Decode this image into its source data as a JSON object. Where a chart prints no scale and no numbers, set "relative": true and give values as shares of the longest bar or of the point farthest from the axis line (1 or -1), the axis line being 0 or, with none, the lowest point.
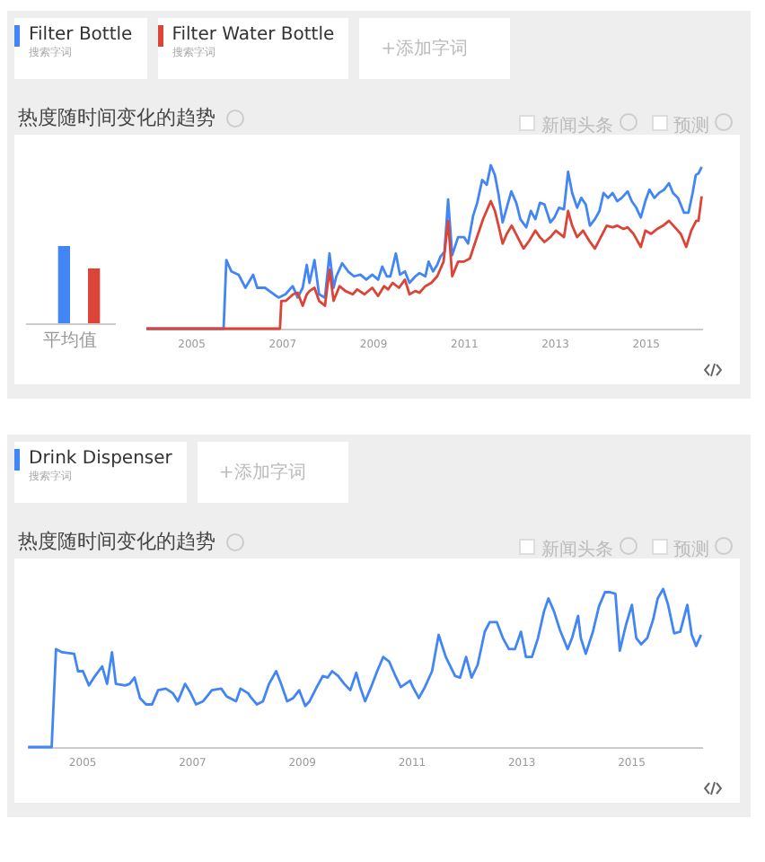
{
  "chart_data": [
    {
      "type": "bar",
      "relative": true,
      "categories": [
        "平均值"
      ],
      "series": [
        {
          "color": "#4285f4",
          "values": [
            1
          ]
        },
        {
          "color": "#db4437",
          "values": [
            0.71
          ]
        }
      ]
    },
    {
      "type": "line",
      "title": "热度随时间变化的趋势",
      "relative": true,
      "legend": "top left",
      "xlim": [
        2004,
        2016.25
      ],
      "xticks": [
        2005,
        2007,
        2009,
        2011,
        2013,
        2015
      ],
      "annotations": [
        "搜索字词",
        "搜索字词",
        "+添加字词",
        "新闻头条",
        "预测"
      ],
      "series": [
        {
          "name": "Filter Bottle",
          "color": "#4285f4",
          "x": [
            2004.02,
            2005.72,
            2005.78,
            2005.89,
            2006.05,
            2006.2,
            2006.37,
            2006.46,
            2006.63,
            2006.83,
            2006.93,
            2007.08,
            2007.24,
            2007.35,
            2007.46,
            2007.55,
            2007.61,
            2007.72,
            2007.82,
            2007.95,
            2008.05,
            2008.14,
            2008.2,
            2008.33,
            2008.46,
            2008.59,
            2008.73,
            2008.86,
            2008.99,
            2009.12,
            2009.21,
            2009.31,
            2009.39,
            2009.51,
            2009.6,
            2009.71,
            2009.81,
            2009.94,
            2010.03,
            2010.16,
            2010.23,
            2010.33,
            2010.42,
            2010.49,
            2010.58,
            2010.66,
            2010.75,
            2010.88,
            2011.01,
            2011.1,
            2011.21,
            2011.3,
            2011.41,
            2011.51,
            2011.6,
            2011.69,
            2011.77,
            2011.86,
            2011.95,
            2012.05,
            2012.16,
            2012.25,
            2012.38,
            2012.48,
            2012.58,
            2012.68,
            2012.78,
            2012.91,
            2013.0,
            2013.1,
            2013.21,
            2013.3,
            2013.39,
            2013.5,
            2013.59,
            2013.69,
            2013.78,
            2013.89,
            2013.99,
            2014.08,
            2014.18,
            2014.28,
            2014.38,
            2014.48,
            2014.61,
            2014.7,
            2014.8,
            2014.9,
            2015.0,
            2015.09,
            2015.2,
            2015.3,
            2015.41,
            2015.52,
            2015.61,
            2015.72,
            2015.85,
            2015.95,
            2016.04,
            2016.11,
            2016.17,
            2016.24
          ],
          "values": [
            0,
            0,
            0.42,
            0.35,
            0.33,
            0.25,
            0.33,
            0.25,
            0.25,
            0.21,
            0.19,
            0.21,
            0.26,
            0.19,
            0.25,
            0.39,
            0.28,
            0.42,
            0.21,
            0.19,
            0.46,
            0.25,
            0.32,
            0.4,
            0.35,
            0.32,
            0.33,
            0.3,
            0.33,
            0.3,
            0.38,
            0.32,
            0.32,
            0.46,
            0.33,
            0.35,
            0.28,
            0.32,
            0.34,
            0.32,
            0.41,
            0.35,
            0.39,
            0.44,
            0.47,
            0.79,
            0.45,
            0.56,
            0.56,
            0.52,
            0.69,
            0.77,
            0.91,
            0.88,
            1.0,
            0.94,
            0.82,
            0.65,
            0.74,
            0.84,
            0.77,
            0.67,
            0.62,
            0.72,
            0.67,
            0.77,
            0.76,
            0.65,
            0.68,
            0.74,
            0.73,
            0.96,
            0.83,
            0.74,
            0.8,
            0.76,
            0.63,
            0.67,
            0.72,
            0.83,
            0.8,
            0.83,
            0.78,
            0.8,
            0.84,
            0.78,
            0.74,
            0.68,
            0.78,
            0.85,
            0.8,
            0.83,
            0.85,
            0.89,
            0.83,
            0.8,
            0.71,
            0.71,
            0.83,
            0.94,
            0.95,
            0.99
          ]
        },
        {
          "name": "Filter Water Bottle",
          "color": "#db4437",
          "x": [
            2004.02,
            2006.96,
            2006.99,
            2007.09,
            2007.25,
            2007.35,
            2007.46,
            2007.55,
            2007.61,
            2007.72,
            2007.82,
            2007.95,
            2008.05,
            2008.14,
            2008.27,
            2008.4,
            2008.56,
            2008.66,
            2008.82,
            2008.99,
            2009.12,
            2009.25,
            2009.34,
            2009.44,
            2009.58,
            2009.71,
            2009.81,
            2009.94,
            2010.03,
            2010.16,
            2010.29,
            2010.42,
            2010.56,
            2010.66,
            2010.75,
            2010.88,
            2011.01,
            2011.14,
            2011.27,
            2011.43,
            2011.6,
            2011.69,
            2011.77,
            2011.86,
            2011.95,
            2012.06,
            2012.19,
            2012.32,
            2012.45,
            2012.58,
            2012.68,
            2012.78,
            2012.91,
            2013.03,
            2013.21,
            2013.3,
            2013.39,
            2013.5,
            2013.63,
            2013.76,
            2013.89,
            2014.02,
            2014.15,
            2014.28,
            2014.38,
            2014.52,
            2014.61,
            2014.74,
            2014.9,
            2015.0,
            2015.13,
            2015.26,
            2015.39,
            2015.52,
            2015.65,
            2015.78,
            2015.9,
            2016.01,
            2016.12,
            2016.17,
            2016.24
          ],
          "values": [
            0,
            0,
            0.17,
            0.17,
            0.21,
            0.22,
            0.14,
            0.21,
            0.23,
            0.25,
            0.17,
            0.14,
            0.36,
            0.17,
            0.26,
            0.23,
            0.21,
            0.24,
            0.21,
            0.25,
            0.2,
            0.26,
            0.24,
            0.28,
            0.25,
            0.3,
            0.21,
            0.23,
            0.22,
            0.26,
            0.28,
            0.32,
            0.41,
            0.66,
            0.32,
            0.41,
            0.41,
            0.43,
            0.54,
            0.67,
            0.78,
            0.72,
            0.63,
            0.52,
            0.58,
            0.63,
            0.56,
            0.49,
            0.54,
            0.6,
            0.56,
            0.53,
            0.56,
            0.6,
            0.56,
            0.72,
            0.63,
            0.56,
            0.6,
            0.54,
            0.49,
            0.56,
            0.63,
            0.62,
            0.63,
            0.61,
            0.62,
            0.58,
            0.5,
            0.6,
            0.58,
            0.61,
            0.63,
            0.66,
            0.62,
            0.58,
            0.5,
            0.6,
            0.66,
            0.66,
            0.81
          ]
        }
      ]
    },
    {
      "type": "line",
      "title": "热度随时间变化的趋势",
      "relative": true,
      "legend": "top left",
      "xlim": [
        2004,
        2016.3
      ],
      "xticks": [
        2005,
        2007,
        2009,
        2011,
        2013,
        2015
      ],
      "annotations": [
        "搜索字词",
        "+添加字词",
        "新闻头条",
        "预测"
      ],
      "series": [
        {
          "name": "Drink Dispenser",
          "color": "#4285f4",
          "x": [
            2004.02,
            2004.45,
            2004.53,
            2004.64,
            2004.86,
            2004.93,
            2005.02,
            2005.13,
            2005.24,
            2005.37,
            2005.46,
            2005.55,
            2005.62,
            2005.79,
            2005.87,
            2005.96,
            2006.06,
            2006.17,
            2006.28,
            2006.39,
            2006.53,
            2006.66,
            2006.75,
            2006.88,
            2006.97,
            2007.08,
            2007.21,
            2007.37,
            2007.54,
            2007.64,
            2007.81,
            2007.89,
            2008.03,
            2008.09,
            2008.19,
            2008.3,
            2008.41,
            2008.54,
            2008.63,
            2008.74,
            2008.85,
            2008.96,
            2009.07,
            2009.15,
            2009.28,
            2009.39,
            2009.48,
            2009.56,
            2009.67,
            2009.78,
            2009.89,
            2010.0,
            2010.07,
            2010.16,
            2010.27,
            2010.38,
            2010.49,
            2010.6,
            2010.7,
            2010.81,
            2010.98,
            2011.03,
            2011.14,
            2011.25,
            2011.38,
            2011.5,
            2011.63,
            2011.8,
            2011.89,
            2012.0,
            2012.1,
            2012.21,
            2012.34,
            2012.43,
            2012.56,
            2012.67,
            2012.78,
            2012.89,
            2013.0,
            2013.09,
            2013.2,
            2013.31,
            2013.42,
            2013.5,
            2013.6,
            2013.71,
            2013.85,
            2013.93,
            2014.04,
            2014.09,
            2014.18,
            2014.31,
            2014.42,
            2014.53,
            2014.62,
            2014.72,
            2014.8,
            2014.91,
            2015.02,
            2015.1,
            2015.19,
            2015.3,
            2015.41,
            2015.49,
            2015.59,
            2015.68,
            2015.79,
            2015.9,
            2016.03,
            2016.11,
            2016.19,
            2016.28
          ],
          "values": [
            0,
            0,
            0.62,
            0.6,
            0.59,
            0.48,
            0.48,
            0.39,
            0.45,
            0.51,
            0.4,
            0.6,
            0.4,
            0.39,
            0.4,
            0.44,
            0.31,
            0.27,
            0.27,
            0.36,
            0.37,
            0.34,
            0.29,
            0.4,
            0.35,
            0.27,
            0.29,
            0.36,
            0.37,
            0.32,
            0.29,
            0.37,
            0.34,
            0.31,
            0.27,
            0.29,
            0.4,
            0.48,
            0.4,
            0.29,
            0.31,
            0.36,
            0.26,
            0.29,
            0.38,
            0.45,
            0.44,
            0.48,
            0.45,
            0.4,
            0.36,
            0.47,
            0.38,
            0.29,
            0.38,
            0.48,
            0.57,
            0.54,
            0.46,
            0.38,
            0.42,
            0.38,
            0.31,
            0.38,
            0.48,
            0.71,
            0.57,
            0.45,
            0.44,
            0.57,
            0.44,
            0.52,
            0.73,
            0.79,
            0.79,
            0.69,
            0.62,
            0.62,
            0.73,
            0.57,
            0.57,
            0.69,
            0.86,
            0.94,
            0.86,
            0.74,
            0.62,
            0.69,
            0.83,
            0.69,
            0.59,
            0.73,
            0.89,
            0.98,
            0.98,
            0.97,
            0.61,
            0.77,
            0.9,
            0.69,
            0.65,
            0.69,
            0.81,
            0.94,
            1.0,
            0.9,
            0.72,
            0.73,
            0.9,
            0.71,
            0.64,
            0.71
          ]
        }
      ]
    }
  ]
}
